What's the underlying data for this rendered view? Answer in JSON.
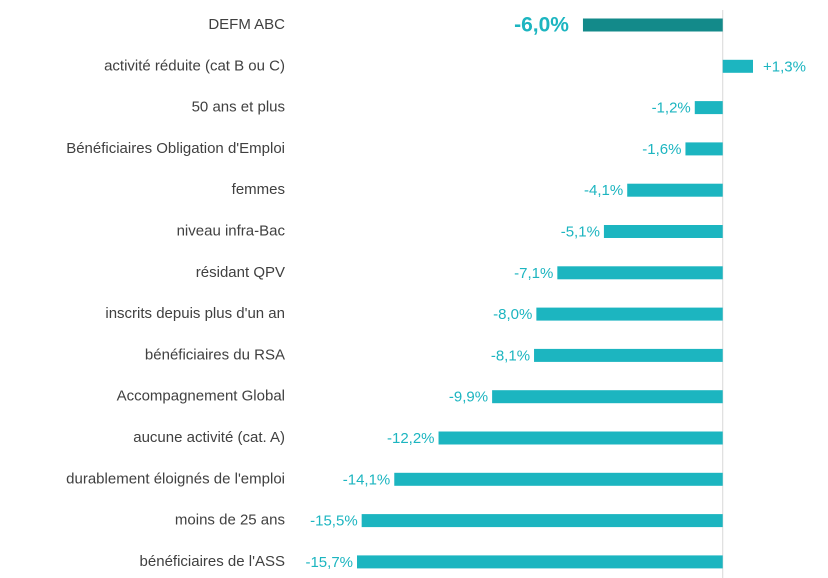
{
  "chart_data": {
    "type": "barh",
    "categories": [
      "DEFM ABC",
      "activité réduite (cat B ou C)",
      "50 ans et plus",
      "Bénéficiaires Obligation d'Emploi",
      "femmes",
      "niveau infra-Bac",
      "résidant QPV",
      "inscrits depuis plus d'un an",
      "bénéficiaires du RSA",
      "Accompagnement Global",
      "aucune activité (cat. A)",
      "durablement éloignés de l'emploi",
      "moins de 25 ans",
      "bénéficiaires de l'ASS"
    ],
    "values": [
      -6.0,
      1.3,
      -1.2,
      -1.6,
      -4.1,
      -5.1,
      -7.1,
      -8.0,
      -8.1,
      -9.9,
      -12.2,
      -14.1,
      -15.5,
      -15.7
    ],
    "value_labels": [
      "-6,0%",
      "+1,3%",
      "-1,2%",
      "-1,6%",
      "-4,1%",
      "-5,1%",
      "-7,1%",
      "-8,0%",
      "-8,1%",
      "-9,9%",
      "-12,2%",
      "-14,1%",
      "-15,5%",
      "-15,7%"
    ],
    "colors": [
      "#138a8a",
      "#1cb5c0",
      "#1cb5c0",
      "#1cb5c0",
      "#1cb5c0",
      "#1cb5c0",
      "#1cb5c0",
      "#1cb5c0",
      "#1cb5c0",
      "#1cb5c0",
      "#1cb5c0",
      "#1cb5c0",
      "#1cb5c0",
      "#1cb5c0"
    ],
    "label_color": "#1cb5c0"
  }
}
